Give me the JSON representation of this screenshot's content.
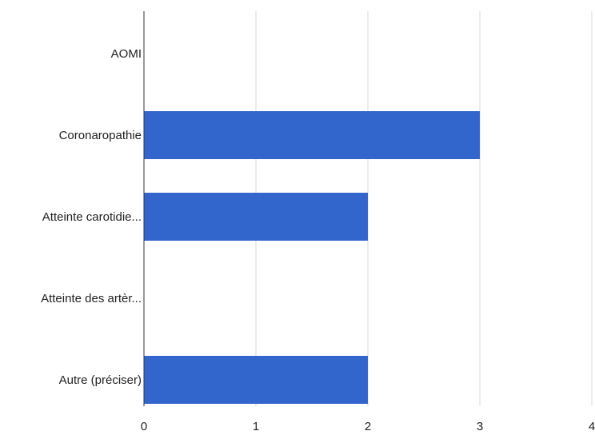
{
  "chart_data": {
    "type": "bar",
    "orientation": "horizontal",
    "categories": [
      "AOMI",
      "Coronaropathie",
      "Atteinte carotidie...",
      "Atteinte des artèr...",
      "Autre (préciser)"
    ],
    "values": [
      0,
      3,
      2,
      0,
      2
    ],
    "xlim": [
      0,
      4
    ],
    "x_ticks": [
      "0",
      "1",
      "2",
      "3",
      "4"
    ],
    "grid": true,
    "legend": "none",
    "bar_color": "#3366cc",
    "grid_color": "#d9d9d9",
    "axis_color": "#333333",
    "text_color": "#222222"
  }
}
